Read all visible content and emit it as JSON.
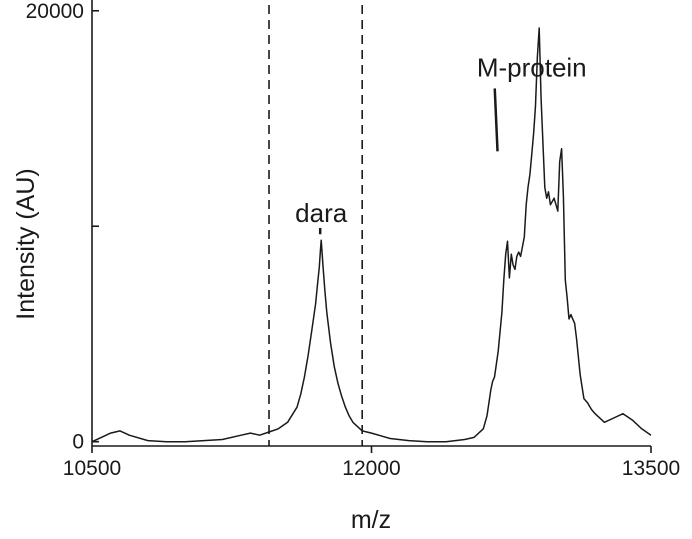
{
  "chart_data": {
    "type": "line",
    "title": "",
    "xlabel": "m/z",
    "ylabel": "Intensity (AU)",
    "xlim": [
      10500,
      13500
    ],
    "ylim": [
      -200,
      20500
    ],
    "x_ticks": [
      10500,
      12000,
      13500
    ],
    "x_tick_labels": [
      "10500",
      "12000",
      "13500"
    ],
    "y_ticks": [
      0,
      10000,
      20000
    ],
    "y_tick_labels": [
      "0",
      "",
      "20000"
    ],
    "grid": false,
    "legend": "none",
    "vertical_lines": [
      {
        "x": 11450,
        "style": "dashed"
      },
      {
        "x": 11950,
        "style": "dashed"
      }
    ],
    "annotations": [
      {
        "text": "dara",
        "x": 11730,
        "y": 10200,
        "pointer_to": {
          "x": 11730,
          "y": 9350
        }
      },
      {
        "text": "M-protein",
        "x": 12860,
        "y": 16950,
        "pointer_to": {
          "x": 12730,
          "y": 13200
        }
      }
    ],
    "series": [
      {
        "x": [
          10500,
          10550,
          10600,
          10650,
          10700,
          10800,
          10900,
          11000,
          11100,
          11200,
          11300,
          11350,
          11400,
          11450,
          11500,
          11550,
          11600,
          11620,
          11640,
          11660,
          11680,
          11700,
          11710,
          11715,
          11720,
          11725,
          11730,
          11740,
          11750,
          11760,
          11780,
          11800,
          11820,
          11840,
          11860,
          11880,
          11900,
          11950,
          12000,
          12100,
          12200,
          12300,
          12400,
          12500,
          12550,
          12600,
          12620,
          12640,
          12650,
          12660,
          12680,
          12700,
          12710,
          12720,
          12730,
          12740,
          12750,
          12760,
          12770,
          12780,
          12790,
          12800,
          12820,
          12830,
          12840,
          12850,
          12860,
          12870,
          12875,
          12880,
          12890,
          12900,
          12910,
          12920,
          12930,
          12940,
          12950,
          12960,
          12980,
          13000,
          13010,
          13020,
          13030,
          13040,
          13050,
          13060,
          13070,
          13080,
          13090,
          13100,
          13120,
          13140,
          13160,
          13180,
          13200,
          13250,
          13300,
          13350,
          13400,
          13450,
          13500
        ],
        "y": [
          0,
          200,
          400,
          500,
          300,
          50,
          0,
          0,
          50,
          100,
          300,
          400,
          300,
          450,
          600,
          900,
          1600,
          2200,
          3000,
          4000,
          5200,
          6400,
          7300,
          7700,
          8100,
          8800,
          9350,
          8100,
          7000,
          6000,
          4600,
          3500,
          2700,
          2100,
          1600,
          1200,
          900,
          500,
          400,
          150,
          50,
          0,
          0,
          100,
          200,
          600,
          1200,
          2400,
          2800,
          3000,
          4200,
          6000,
          7500,
          8700,
          9300,
          7600,
          8700,
          8200,
          8000,
          8600,
          8800,
          8600,
          9500,
          11000,
          11800,
          12400,
          13300,
          14300,
          14900,
          15600,
          17800,
          19200,
          15900,
          13900,
          11800,
          11300,
          11600,
          11000,
          11300,
          10700,
          13000,
          13600,
          11400,
          7500,
          6700,
          5700,
          5900,
          5700,
          5500,
          4800,
          3100,
          2000,
          1800,
          1500,
          1300,
          900,
          1100,
          1300,
          1000,
          600,
          300
        ]
      }
    ]
  }
}
